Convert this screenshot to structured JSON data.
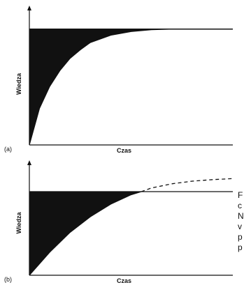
{
  "chart_data": [
    {
      "panel": "(a)",
      "type": "area",
      "xlabel": "Czas",
      "ylabel": "Wiedza",
      "xlim": [
        0,
        1
      ],
      "ylim": [
        0,
        1
      ],
      "grid": false,
      "required_knowledge_level": 0.95,
      "curve": {
        "x": [
          0,
          0.05,
          0.1,
          0.15,
          0.2,
          0.25,
          0.3,
          0.4,
          0.5,
          0.6,
          0.7,
          0.8,
          0.9,
          1.0
        ],
        "y": [
          0,
          0.3,
          0.48,
          0.61,
          0.71,
          0.78,
          0.84,
          0.9,
          0.93,
          0.945,
          0.95,
          0.95,
          0.95,
          0.95
        ]
      },
      "shaded_region": "between level and curve"
    },
    {
      "panel": "(b)",
      "type": "area",
      "xlabel": "Czas",
      "ylabel": "Wiedza",
      "xlim": [
        0,
        1
      ],
      "ylim": [
        0,
        1
      ],
      "grid": false,
      "required_knowledge_level": 0.8,
      "curve": {
        "x": [
          0,
          0.1,
          0.2,
          0.3,
          0.4,
          0.5,
          0.55,
          0.6,
          0.7,
          0.8,
          0.9,
          1.0
        ],
        "y": [
          0,
          0.22,
          0.41,
          0.56,
          0.68,
          0.77,
          0.8,
          0.835,
          0.875,
          0.9,
          0.915,
          0.925
        ]
      },
      "curve_solid_until_x": 0.55,
      "curve_dashed_after_x": 0.55,
      "shaded_region": "between level and curve"
    }
  ],
  "cut_text": [
    "F",
    "c",
    "N",
    "v",
    "p",
    "p"
  ]
}
